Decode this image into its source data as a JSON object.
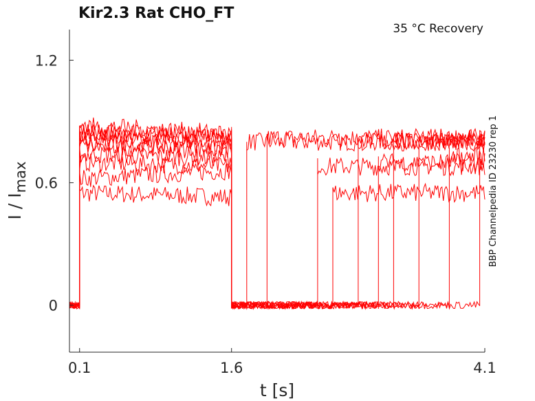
{
  "chart_data": {
    "type": "line",
    "title": "Kir2.3  Rat  CHO_FT",
    "annotation": "35 °C  Recovery",
    "side_label": "BBP Channelpedia ID 23230 rep 1",
    "xlabel": "t [s]",
    "ylabel_main": "I / I",
    "ylabel_sub": "max",
    "xlim": [
      0.0,
      4.1
    ],
    "ylim": [
      -0.23,
      1.35
    ],
    "xticks": [
      {
        "value": 0.1,
        "label": "0.1"
      },
      {
        "value": 1.6,
        "label": "1.6"
      },
      {
        "value": 4.1,
        "label": "4.1"
      }
    ],
    "yticks": [
      {
        "value": 0,
        "label": "0"
      },
      {
        "value": 0.6,
        "label": "0.6"
      },
      {
        "value": 1.2,
        "label": "1.2"
      }
    ],
    "grid": false,
    "line_color": "#ff0000",
    "series": [
      {
        "x": [
          0.0,
          0.1,
          0.1,
          1.6,
          1.6,
          1.75,
          1.75,
          4.1
        ],
        "y": [
          0.0,
          0.0,
          0.55,
          0.53,
          0.0,
          0.0,
          0.8,
          0.8
        ]
      },
      {
        "x": [
          0.0,
          0.1,
          0.1,
          1.6,
          1.6,
          1.95,
          1.95,
          4.1
        ],
        "y": [
          0.0,
          0.0,
          0.62,
          0.66,
          0.0,
          0.0,
          0.82,
          0.82
        ]
      },
      {
        "x": [
          0.0,
          0.1,
          0.1,
          1.6,
          1.6,
          2.45,
          2.45,
          4.1
        ],
        "y": [
          0.0,
          0.0,
          0.7,
          0.68,
          0.0,
          0.0,
          0.68,
          0.68
        ]
      },
      {
        "x": [
          0.0,
          0.1,
          0.1,
          1.6,
          1.6,
          2.6,
          2.6,
          4.1
        ],
        "y": [
          0.0,
          0.0,
          0.74,
          0.72,
          0.0,
          0.0,
          0.55,
          0.55
        ]
      },
      {
        "x": [
          0.0,
          0.1,
          0.1,
          1.6,
          1.6,
          2.85,
          2.85,
          4.1
        ],
        "y": [
          0.0,
          0.0,
          0.78,
          0.76,
          0.0,
          0.0,
          0.8,
          0.8
        ]
      },
      {
        "x": [
          0.0,
          0.1,
          0.1,
          1.6,
          1.6,
          3.05,
          3.05,
          4.1
        ],
        "y": [
          0.0,
          0.0,
          0.82,
          0.8,
          0.0,
          0.0,
          0.7,
          0.7
        ]
      },
      {
        "x": [
          0.0,
          0.1,
          0.1,
          1.6,
          1.6,
          3.2,
          3.2,
          4.1
        ],
        "y": [
          0.0,
          0.0,
          0.85,
          0.83,
          0.0,
          0.0,
          0.8,
          0.8
        ]
      },
      {
        "x": [
          0.0,
          0.1,
          0.1,
          1.6,
          1.6,
          3.45,
          3.45,
          4.1
        ],
        "y": [
          0.0,
          0.0,
          0.88,
          0.84,
          0.0,
          0.0,
          0.82,
          0.82
        ]
      },
      {
        "x": [
          0.0,
          0.1,
          0.1,
          1.6,
          1.6,
          3.75,
          3.75,
          4.1
        ],
        "y": [
          0.0,
          0.0,
          0.8,
          0.78,
          0.0,
          0.0,
          0.73,
          0.73
        ]
      },
      {
        "x": [
          0.0,
          0.1,
          0.1,
          1.6,
          1.6,
          4.05,
          4.05,
          4.1
        ],
        "y": [
          0.0,
          0.0,
          0.84,
          0.82,
          0.0,
          0.0,
          0.82,
          0.82
        ]
      }
    ]
  }
}
